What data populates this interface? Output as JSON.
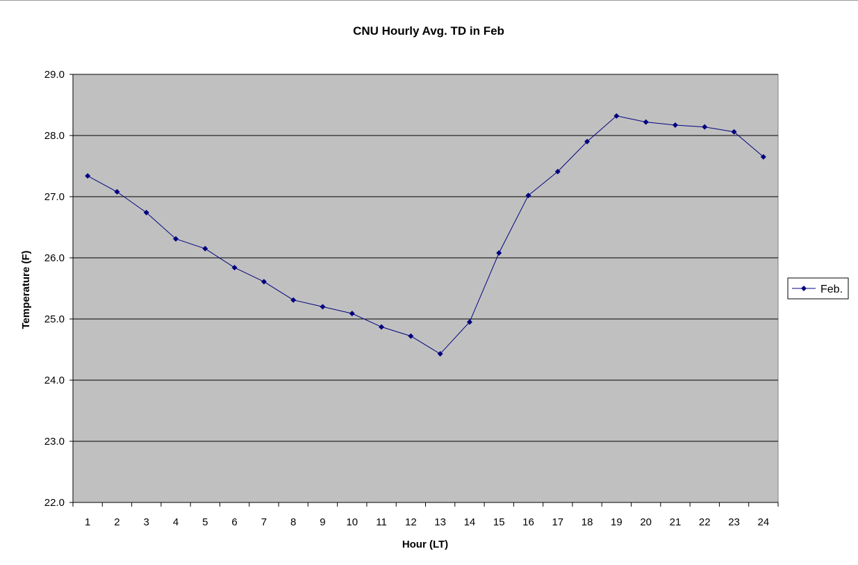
{
  "chart_data": {
    "type": "line",
    "title": "CNU Hourly Avg. TD in Feb",
    "xlabel": "Hour (LT)",
    "ylabel": "Temperature (F)",
    "categories": [
      "1",
      "2",
      "3",
      "4",
      "5",
      "6",
      "7",
      "8",
      "9",
      "10",
      "11",
      "12",
      "13",
      "14",
      "15",
      "16",
      "17",
      "18",
      "19",
      "20",
      "21",
      "22",
      "23",
      "24"
    ],
    "series": [
      {
        "name": "Feb.",
        "values": [
          27.34,
          27.08,
          26.74,
          26.31,
          26.15,
          25.84,
          25.61,
          25.31,
          25.2,
          25.09,
          24.87,
          24.72,
          24.43,
          24.95,
          26.08,
          27.02,
          27.41,
          27.9,
          28.32,
          28.22,
          28.17,
          28.14,
          28.06,
          27.65
        ]
      }
    ],
    "ylim": [
      22.0,
      29.0
    ],
    "yticks": [
      "22.0",
      "23.0",
      "24.0",
      "25.0",
      "26.0",
      "27.0",
      "28.0",
      "29.0"
    ],
    "grid": "horizontal",
    "legend": "right",
    "colors": {
      "series": "#000080",
      "plot_background": "#c0c0c0",
      "gridline": "#000000"
    }
  }
}
